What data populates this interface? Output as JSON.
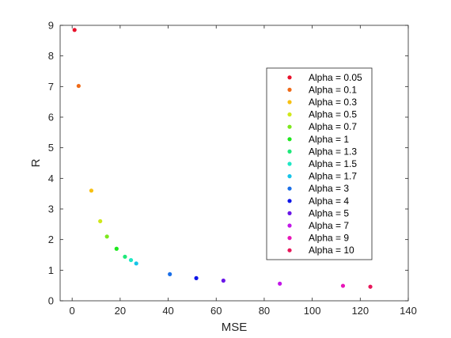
{
  "chart_data": {
    "type": "scatter",
    "title": "",
    "xlabel": "MSE",
    "ylabel": "R",
    "xlim": [
      -5,
      140
    ],
    "ylim": [
      0,
      9
    ],
    "xticks": [
      0,
      20,
      40,
      60,
      80,
      100,
      120,
      140
    ],
    "yticks": [
      0,
      1,
      2,
      3,
      4,
      5,
      6,
      7,
      8,
      9
    ],
    "grid": false,
    "legend_position": "right",
    "series": [
      {
        "name": "Alpha = 0.05",
        "color": "#e8102a",
        "x": [
          1.0
        ],
        "y": [
          8.85
        ]
      },
      {
        "name": "Alpha = 0.1",
        "color": "#ef6a18",
        "x": [
          2.7
        ],
        "y": [
          7.02
        ]
      },
      {
        "name": "Alpha = 0.3",
        "color": "#f7c012",
        "x": [
          8.0
        ],
        "y": [
          3.6
        ]
      },
      {
        "name": "Alpha = 0.5",
        "color": "#cfe81a",
        "x": [
          11.7
        ],
        "y": [
          2.6
        ]
      },
      {
        "name": "Alpha = 0.7",
        "color": "#7de81d",
        "x": [
          14.5
        ],
        "y": [
          2.1
        ]
      },
      {
        "name": "Alpha = 1",
        "color": "#1ee81e",
        "x": [
          18.5
        ],
        "y": [
          1.7
        ]
      },
      {
        "name": "Alpha = 1.3",
        "color": "#1ee87a",
        "x": [
          22.0
        ],
        "y": [
          1.44
        ]
      },
      {
        "name": "Alpha = 1.5",
        "color": "#1ee8c5",
        "x": [
          24.5
        ],
        "y": [
          1.33
        ]
      },
      {
        "name": "Alpha = 1.7",
        "color": "#16c4e8",
        "x": [
          26.7
        ],
        "y": [
          1.22
        ]
      },
      {
        "name": "Alpha = 3",
        "color": "#1a6fe8",
        "x": [
          40.7
        ],
        "y": [
          0.87
        ]
      },
      {
        "name": "Alpha = 4",
        "color": "#0f16e8",
        "x": [
          51.7
        ],
        "y": [
          0.74
        ]
      },
      {
        "name": "Alpha = 5",
        "color": "#6a16e8",
        "x": [
          63.0
        ],
        "y": [
          0.66
        ]
      },
      {
        "name": "Alpha = 7",
        "color": "#c216e8",
        "x": [
          86.5
        ],
        "y": [
          0.56
        ]
      },
      {
        "name": "Alpha = 9",
        "color": "#e816b8",
        "x": [
          112.8
        ],
        "y": [
          0.49
        ]
      },
      {
        "name": "Alpha = 10",
        "color": "#e8165a",
        "x": [
          124.2
        ],
        "y": [
          0.46
        ]
      }
    ]
  }
}
